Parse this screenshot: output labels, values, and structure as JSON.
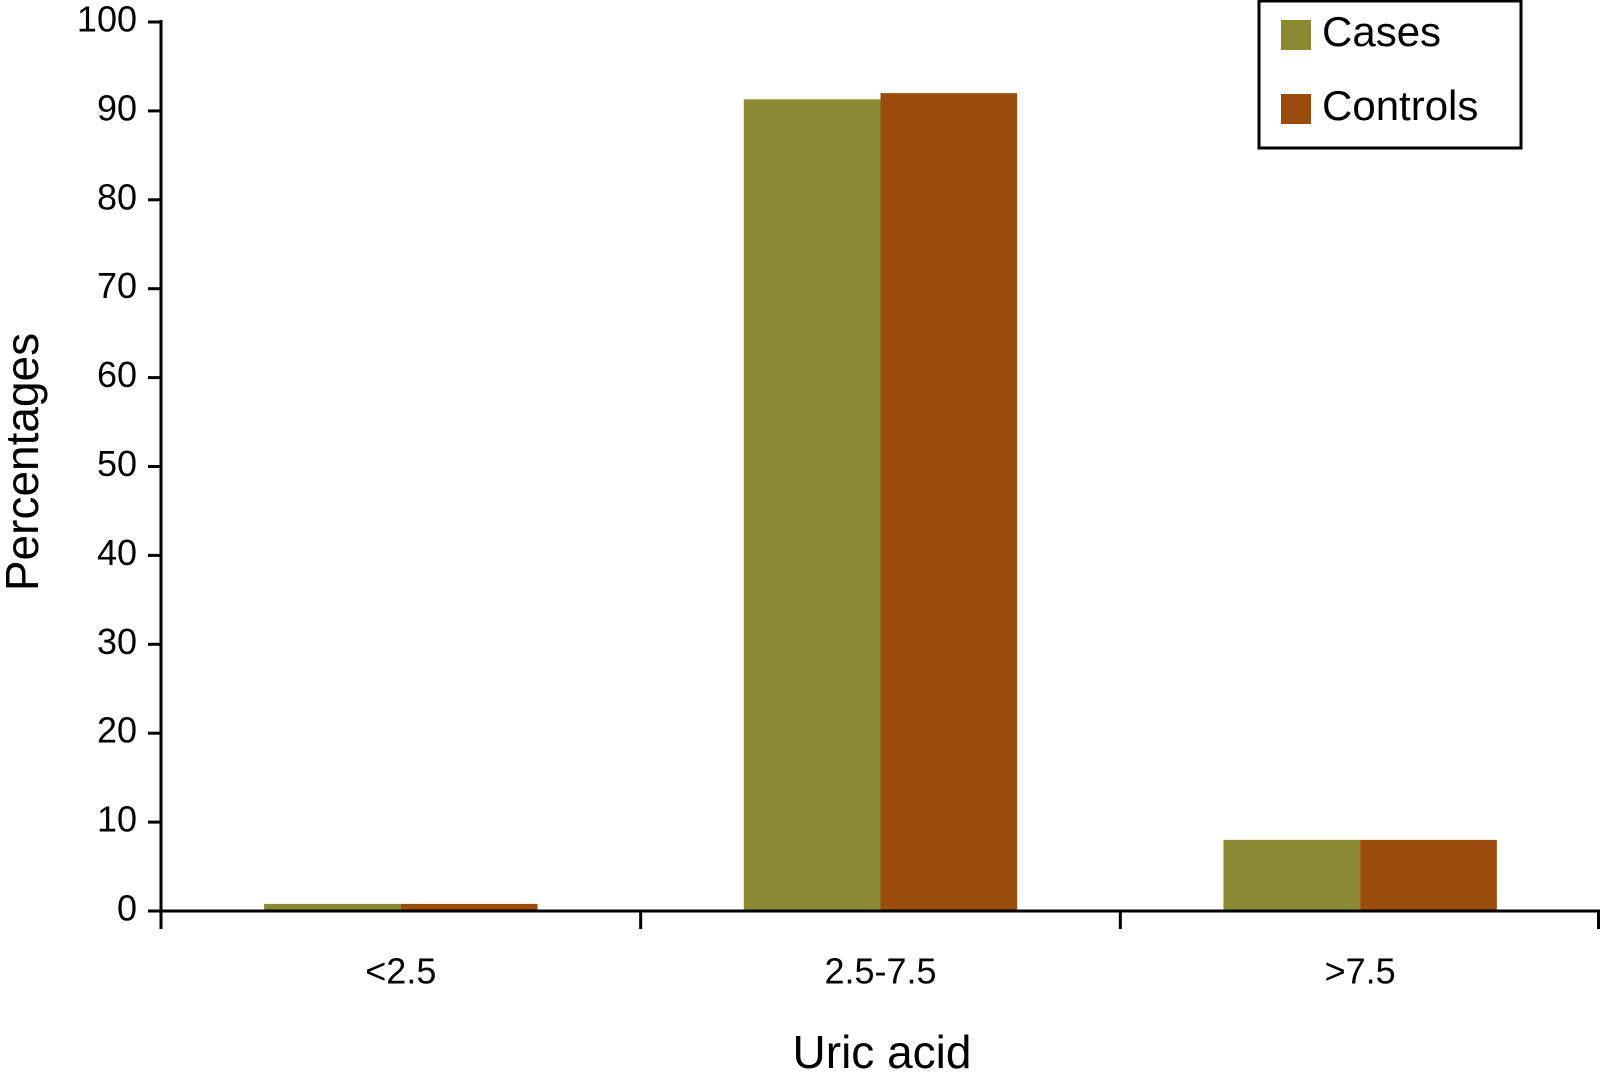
{
  "chart_data": {
    "type": "bar",
    "x_label": "Uric acid",
    "y_label": "Percentages",
    "categories": [
      "<2.5",
      "2.5-7.5",
      ">7.5"
    ],
    "series": [
      {
        "name": "Cases",
        "color": "#8a8a33",
        "values": [
          0.8,
          91.3,
          8
        ]
      },
      {
        "name": "Controls",
        "color": "#9a4c0c",
        "values": [
          0.8,
          92,
          8
        ]
      }
    ],
    "ylim": [
      0,
      100
    ],
    "yticks": [
      0,
      10,
      20,
      30,
      40,
      50,
      60,
      70,
      80,
      90,
      100
    ],
    "legend": "upper right"
  }
}
